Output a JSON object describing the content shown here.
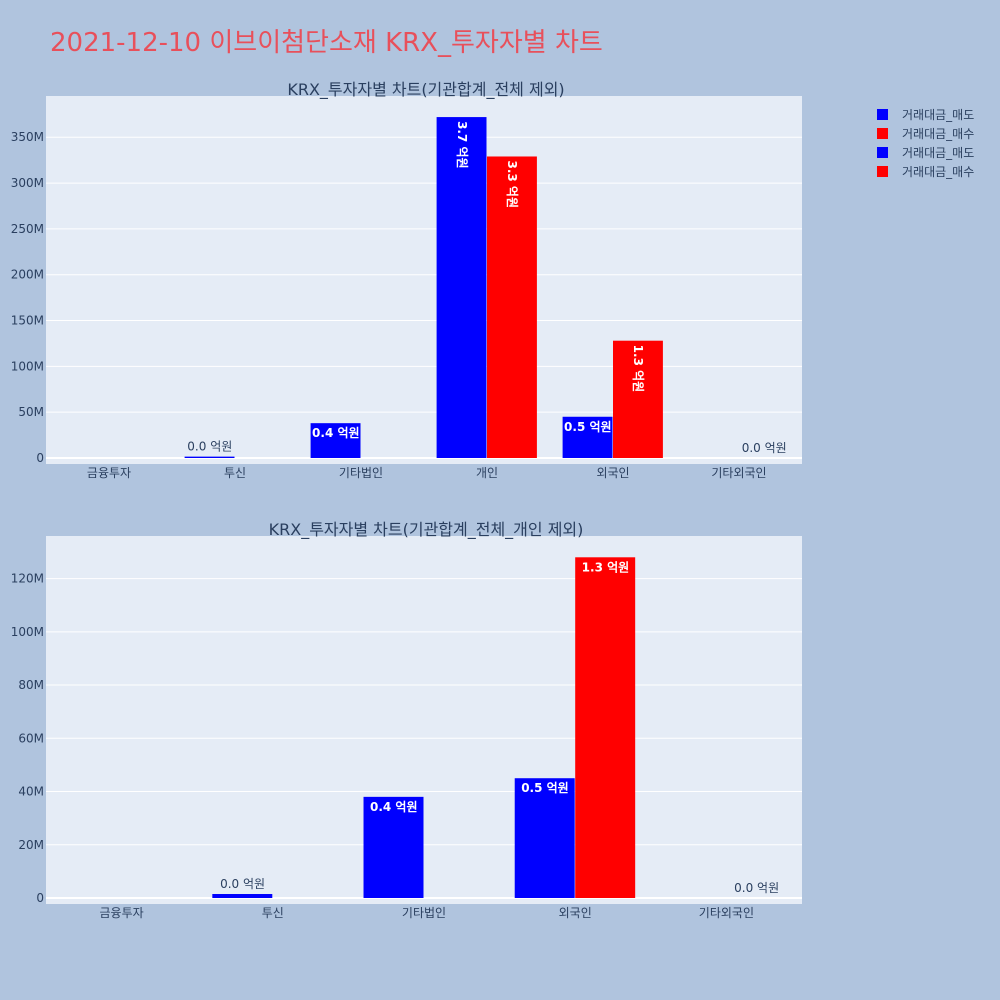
{
  "page": {
    "title": "2021-12-10 이브이첨단소재 KRX_투자자별 차트",
    "title_color": "#e8505b",
    "background": "#b0c4de"
  },
  "legend": {
    "placement": "top-right",
    "items": [
      {
        "label": "거래대금_매도",
        "color": "#0000ff"
      },
      {
        "label": "거래대금_매수",
        "color": "#ff0000"
      },
      {
        "label": "거래대금_매도",
        "color": "#0000ff"
      },
      {
        "label": "거래대금_매수",
        "color": "#ff0000"
      }
    ]
  },
  "chart_data": [
    {
      "type": "bar",
      "title": "KRX_투자자별 차트(기관합계_전체 제외)",
      "categories": [
        "금융투자",
        "투신",
        "기타법인",
        "개인",
        "외국인",
        "기타외국인"
      ],
      "ylim": [
        0,
        395000000
      ],
      "yticks": [
        0,
        50000000,
        100000000,
        150000000,
        200000000,
        250000000,
        300000000,
        350000000
      ],
      "ytick_labels": [
        "0",
        "50M",
        "100M",
        "150M",
        "200M",
        "250M",
        "300M",
        "350M"
      ],
      "grid": true,
      "series": [
        {
          "name": "거래대금_매도",
          "color": "#0000ff",
          "values": [
            0,
            1500000,
            38000000,
            372000000,
            45000000,
            0
          ],
          "labels": [
            "",
            "0.0 억원",
            "0.4 억원",
            "3.7 억원",
            "0.5 억원",
            ""
          ]
        },
        {
          "name": "거래대금_매수",
          "color": "#ff0000",
          "values": [
            0,
            0,
            0,
            329000000,
            128000000,
            0
          ],
          "labels": [
            "",
            "",
            "",
            "3.3 억원",
            "1.3 억원",
            "0.0 억원"
          ]
        }
      ]
    },
    {
      "type": "bar",
      "title": "KRX_투자자별 차트(기관합계_전체_개인 제외)",
      "categories": [
        "금융투자",
        "투신",
        "기타법인",
        "외국인",
        "기타외국인"
      ],
      "ylim": [
        0,
        136000000
      ],
      "yticks": [
        0,
        20000000,
        40000000,
        60000000,
        80000000,
        100000000,
        120000000
      ],
      "ytick_labels": [
        "0",
        "20M",
        "40M",
        "60M",
        "80M",
        "100M",
        "120M"
      ],
      "grid": true,
      "series": [
        {
          "name": "거래대금_매도",
          "color": "#0000ff",
          "values": [
            0,
            1500000,
            38000000,
            45000000,
            0
          ],
          "labels": [
            "",
            "0.0 억원",
            "0.4 억원",
            "0.5 억원",
            ""
          ]
        },
        {
          "name": "거래대금_매수",
          "color": "#ff0000",
          "values": [
            0,
            0,
            0,
            128000000,
            0
          ],
          "labels": [
            "",
            "",
            "",
            "1.3 억원",
            "0.0 억원"
          ]
        }
      ]
    }
  ]
}
